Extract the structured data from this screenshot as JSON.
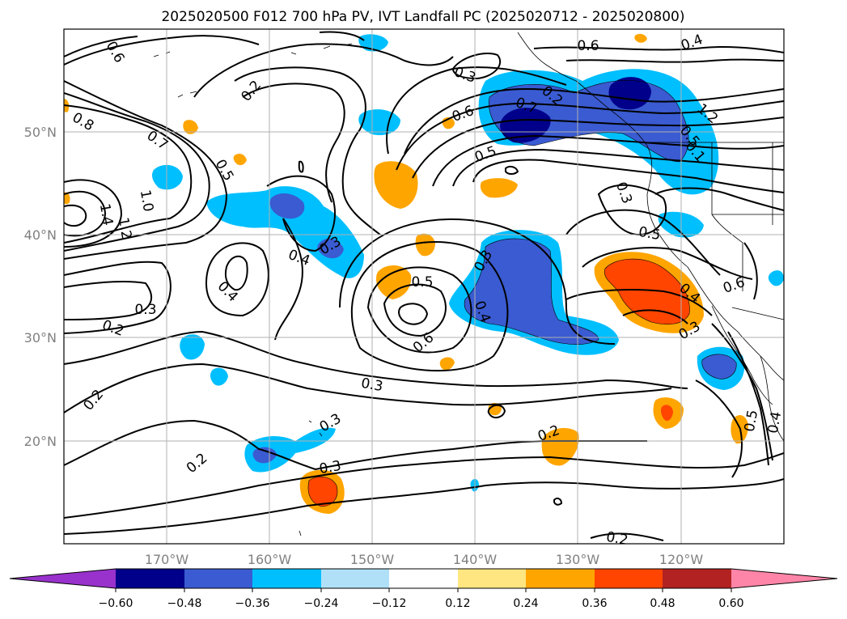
{
  "title": "2025020500 F012 700 hPa PV, IVT Landfall PC (2025020712 - 2025020800)",
  "map": {
    "lat_labels": [
      "50°N",
      "40°N",
      "30°N",
      "20°N"
    ],
    "lon_labels": [
      "170°W",
      "160°W",
      "150°W",
      "140°W",
      "130°W",
      "120°W"
    ],
    "grid": true
  },
  "contour_labels": [
    "0.6",
    "0.4",
    "0.6",
    "0.3",
    "0.2",
    "0.8",
    "0.7",
    "0.5",
    "1.0",
    "1.4",
    "1.2",
    "0.6",
    "0.7",
    "0.5",
    "0.3",
    "0.4",
    "0.3",
    "0.2",
    "0.3",
    "0.4",
    "0.5",
    "0.6",
    "0.4",
    "0.3",
    "0.5",
    "0.3",
    "0.6",
    "0.2",
    "0.2",
    "0.2",
    "0.3",
    "0.2",
    "0.3",
    "0.4",
    "0.5",
    "0.1",
    "0.3",
    "0.5",
    "0.4",
    "0.2",
    "1.2"
  ],
  "colorbar": {
    "ticks": [
      "−0.60",
      "−0.48",
      "−0.36",
      "−0.24",
      "−0.12",
      "0.12",
      "0.24",
      "0.36",
      "0.48",
      "0.60"
    ],
    "colors": [
      "#9932cc",
      "#00008b",
      "#3a5bd1",
      "#00bfff",
      "#b0e0f8",
      "#ffffff",
      "#ffe680",
      "#ffa500",
      "#ff4500",
      "#b22222",
      "#ff85a8"
    ]
  }
}
